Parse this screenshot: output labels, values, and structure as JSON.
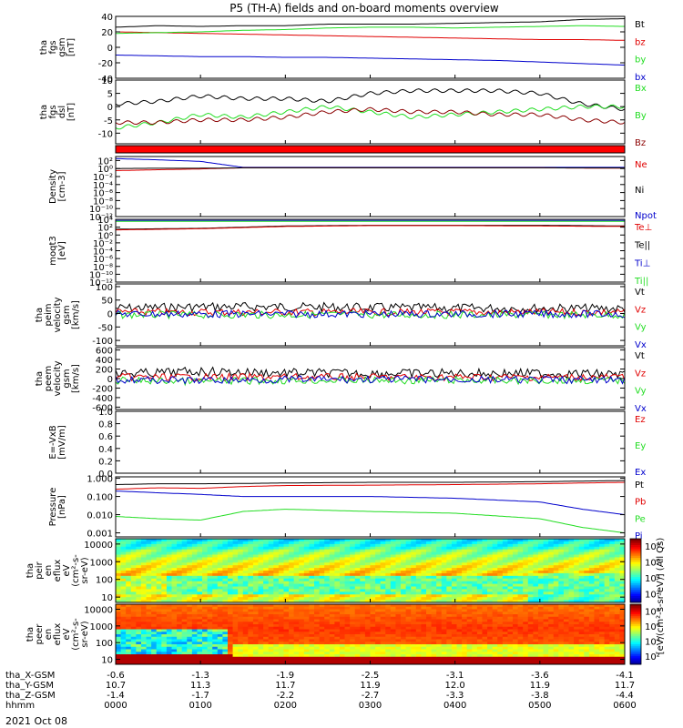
{
  "title": "P5 (TH-A) fields and on-board moments overview",
  "date_label": "2021 Oct 08",
  "colors": {
    "black": "#000000",
    "red": "#e00000",
    "green": "#22dd22",
    "blue": "#0000cc",
    "darkred": "#8b0000"
  },
  "chart_data": [
    {
      "type": "line",
      "id": "fgs-mag",
      "ylabel_lines": [
        "tha",
        "fgs",
        "gsm",
        "[nT]"
      ],
      "ylim": [
        -40,
        40
      ],
      "ticks": [
        "40",
        "20",
        "0",
        "-20",
        "-40"
      ],
      "tick_vals": [
        40,
        20,
        0,
        -20,
        -40
      ],
      "legend": [
        "Bt",
        "bz",
        "by",
        "bx"
      ],
      "series": [
        {
          "name": "Bt",
          "color": "#000000",
          "x": [
            0,
            0.5,
            1,
            1.5,
            2,
            2.5,
            3,
            3.5,
            4,
            4.5,
            5,
            5.5,
            6
          ],
          "values": [
            26,
            28,
            27,
            28,
            28,
            30,
            30,
            30,
            31,
            32,
            33,
            36,
            37
          ]
        },
        {
          "name": "bz",
          "color": "#e00000",
          "x": [
            0,
            0.5,
            1,
            1.5,
            2,
            2.5,
            3,
            3.5,
            4,
            4.5,
            5,
            5.5,
            6
          ],
          "values": [
            20,
            19,
            18,
            17,
            16,
            15,
            14,
            13,
            12,
            11,
            10,
            10,
            9
          ]
        },
        {
          "name": "by",
          "color": "#22dd22",
          "x": [
            0,
            0.5,
            1,
            1.5,
            2,
            2.5,
            3,
            3.5,
            4,
            4.5,
            5,
            5.5,
            6
          ],
          "values": [
            18,
            19,
            20,
            22,
            23,
            25,
            26,
            26,
            25,
            26,
            27,
            28,
            27
          ]
        },
        {
          "name": "bx",
          "color": "#0000cc",
          "x": [
            0,
            0.5,
            1,
            1.5,
            2,
            2.5,
            3,
            3.5,
            4,
            4.5,
            5,
            5.5,
            6
          ],
          "values": [
            -10,
            -11,
            -12,
            -12,
            -13,
            -13,
            -14,
            -15,
            -16,
            -17,
            -19,
            -21,
            -23
          ]
        }
      ]
    },
    {
      "type": "line",
      "id": "fgs-dsl",
      "ylabel_lines": [
        "tha",
        "fgs",
        "dsl",
        "[nT]"
      ],
      "ylim": [
        -14,
        10
      ],
      "ticks": [
        "10",
        "5",
        "0",
        "-5",
        "-10"
      ],
      "tick_vals": [
        10,
        5,
        0,
        -5,
        -10
      ],
      "legend": [
        "Bx",
        "By",
        "Bz"
      ],
      "series": [
        {
          "name": "Bx",
          "color": "#000000",
          "x": [
            0,
            0.5,
            1,
            1.5,
            2,
            2.5,
            3,
            3.5,
            4,
            4.5,
            5,
            5.5,
            6
          ],
          "values": [
            1,
            2,
            4,
            3,
            3,
            2,
            5,
            6,
            6,
            6,
            5,
            1,
            -1
          ]
        },
        {
          "name": "By",
          "color": "#22dd22",
          "x": [
            0,
            0.5,
            1,
            1.5,
            2,
            2.5,
            3,
            3.5,
            4,
            4.5,
            5,
            5.5,
            6
          ],
          "values": [
            -8,
            -6,
            -3,
            -4,
            -2,
            0,
            -2,
            -4,
            -3,
            -2,
            -1,
            0,
            0
          ]
        },
        {
          "name": "Bz",
          "color": "#8b0000",
          "x": [
            0,
            0.5,
            1,
            1.5,
            2,
            2.5,
            3,
            3.5,
            4,
            4.5,
            5,
            5.5,
            6
          ],
          "values": [
            -6,
            -6,
            -5,
            -5,
            -4,
            -2,
            -1,
            -2,
            -2,
            -3,
            -3,
            -5,
            -6
          ]
        }
      ]
    },
    {
      "type": "line",
      "id": "density",
      "log": true,
      "ylabel_lines": [
        "Density",
        "[cm-3]"
      ],
      "ylim": [
        1e-12,
        1000.0
      ],
      "ticks": [
        "10²",
        "10⁰",
        "10⁻²",
        "10⁻⁴",
        "10⁻⁶",
        "10⁻⁸",
        "10⁻¹⁰",
        "10⁻¹²"
      ],
      "tick_vals": [
        100,
        1,
        0.01,
        0.0001,
        1e-06,
        1e-08,
        1e-10,
        1e-12
      ],
      "legend": [
        "Ne",
        "Ni",
        "Npot"
      ],
      "series": [
        {
          "name": "Npot",
          "color": "#0000cc",
          "x": [
            0,
            0.5,
            1,
            1.5,
            2,
            3,
            4,
            5,
            6
          ],
          "values": [
            300,
            150,
            60,
            2,
            2,
            2,
            2,
            2,
            2
          ]
        },
        {
          "name": "Ne",
          "color": "#e00000",
          "x": [
            0,
            0.5,
            1,
            1.5,
            2,
            3,
            4,
            5,
            6
          ],
          "values": [
            0.3,
            0.5,
            0.8,
            1.5,
            1.5,
            1.5,
            1.5,
            1.5,
            1.2
          ]
        },
        {
          "name": "Ni",
          "color": "#000000",
          "x": [
            0,
            0.5,
            1,
            1.5,
            2,
            3,
            4,
            5,
            6
          ],
          "values": [
            1,
            1.2,
            1.2,
            1.5,
            1.5,
            1.5,
            1.5,
            1.5,
            1.4
          ]
        }
      ]
    },
    {
      "type": "line",
      "id": "temperature",
      "log": true,
      "ylabel_lines": [
        "moqt3",
        "[eV]"
      ],
      "ylim": [
        1e-12,
        10000.0
      ],
      "ticks": [
        "10⁴",
        "10²",
        "10⁰",
        "10⁻²",
        "10⁻⁴",
        "10⁻⁶",
        "10⁻⁸",
        "10⁻¹⁰",
        "10⁻¹²"
      ],
      "tick_vals": [
        10000,
        100,
        1,
        0.01,
        0.0001,
        1e-06,
        1e-08,
        1e-10,
        1e-12
      ],
      "legend": [
        "Te⊥",
        "Te||",
        "Ti⊥",
        "Ti||"
      ],
      "series": [
        {
          "name": "Ti⊥",
          "color": "#0000cc",
          "x": [
            0,
            1,
            2,
            3,
            4,
            5,
            6
          ],
          "values": [
            5000,
            5000,
            5000,
            5000,
            5000,
            5000,
            5000
          ]
        },
        {
          "name": "Ti||",
          "color": "#22dd22",
          "x": [
            0,
            1,
            2,
            3,
            4,
            5,
            6
          ],
          "values": [
            3000,
            3000,
            3000,
            3000,
            3000,
            3000,
            3000
          ]
        },
        {
          "name": "Te||",
          "color": "#000000",
          "x": [
            0,
            1,
            2,
            3,
            4,
            5,
            6
          ],
          "values": [
            30,
            50,
            200,
            300,
            300,
            300,
            200
          ]
        },
        {
          "name": "Te⊥",
          "color": "#e00000",
          "x": [
            0,
            1,
            2,
            3,
            4,
            5,
            6
          ],
          "values": [
            20,
            40,
            150,
            250,
            250,
            200,
            150
          ]
        }
      ]
    },
    {
      "type": "line",
      "id": "peim-velocity",
      "ylabel_lines": [
        "tha",
        "peim",
        "velocity",
        "gsm",
        "[km/s]"
      ],
      "ylim": [
        -120,
        110
      ],
      "ticks": [
        "100",
        "50",
        "0",
        "-50",
        "-100"
      ],
      "tick_vals": [
        100,
        50,
        0,
        -50,
        -100
      ],
      "legend": [
        "Vt",
        "Vz",
        "Vy",
        "Vx"
      ],
      "series": [
        {
          "name": "Vt",
          "color": "#000000",
          "x": [
            0,
            1,
            2,
            3,
            4,
            5,
            6
          ],
          "values": [
            20,
            25,
            25,
            22,
            20,
            20,
            18
          ]
        },
        {
          "name": "Vz",
          "color": "#e00000",
          "x": [
            0,
            1,
            2,
            3,
            4,
            5,
            6
          ],
          "values": [
            5,
            5,
            5,
            5,
            5,
            5,
            5
          ]
        },
        {
          "name": "Vy",
          "color": "#22dd22",
          "x": [
            0,
            1,
            2,
            3,
            4,
            5,
            6
          ],
          "values": [
            -5,
            -5,
            -5,
            -5,
            -5,
            -5,
            -5
          ]
        },
        {
          "name": "Vx",
          "color": "#0000cc",
          "x": [
            0,
            1,
            2,
            3,
            4,
            5,
            6
          ],
          "values": [
            -2,
            -2,
            -2,
            -2,
            -2,
            -2,
            -2
          ]
        }
      ]
    },
    {
      "type": "line",
      "id": "peem-velocity",
      "ylabel_lines": [
        "tha",
        "peem",
        "velocity",
        "gsm",
        "[km/s]"
      ],
      "ylim": [
        -650,
        650
      ],
      "ticks": [
        "600",
        "400",
        "200",
        "0",
        "-200",
        "-400",
        "-600"
      ],
      "tick_vals": [
        600,
        400,
        200,
        0,
        -200,
        -400,
        -600
      ],
      "legend": [
        "Vt",
        "Vz",
        "Vy",
        "Vx"
      ],
      "series": [
        {
          "name": "Vt",
          "color": "#000000",
          "x": [
            0,
            1,
            2,
            3,
            4,
            5,
            6
          ],
          "values": [
            100,
            150,
            120,
            110,
            110,
            110,
            90
          ]
        },
        {
          "name": "Vz",
          "color": "#e00000",
          "x": [
            0,
            1,
            2,
            3,
            4,
            5,
            6
          ],
          "values": [
            30,
            30,
            30,
            30,
            30,
            30,
            30
          ]
        },
        {
          "name": "Vy",
          "color": "#22dd22",
          "x": [
            0,
            1,
            2,
            3,
            4,
            5,
            6
          ],
          "values": [
            -40,
            -60,
            -40,
            -40,
            -40,
            -40,
            -40
          ]
        },
        {
          "name": "Vx",
          "color": "#0000cc",
          "x": [
            0,
            1,
            2,
            3,
            4,
            5,
            6
          ],
          "values": [
            -20,
            -40,
            -20,
            -20,
            -20,
            -30,
            -30
          ]
        }
      ]
    },
    {
      "type": "line",
      "id": "efield",
      "ylabel_lines": [
        "E=-VxB",
        "[mV/m]"
      ],
      "ylim": [
        0,
        1
      ],
      "ticks": [
        "1.0",
        "0.8",
        "0.6",
        "0.4",
        "0.2",
        "0.0"
      ],
      "tick_vals": [
        1,
        0.8,
        0.6,
        0.4,
        0.2,
        0
      ],
      "legend": [
        "Ez",
        "Ey",
        "Ex"
      ],
      "series": []
    },
    {
      "type": "line",
      "id": "pressure",
      "log": true,
      "ylabel_lines": [
        "Pressure",
        "[nPa]"
      ],
      "ylim": [
        0.0006,
        1.2
      ],
      "ticks": [
        "1.000",
        "0.100",
        "0.010",
        "0.001"
      ],
      "tick_vals": [
        1,
        0.1,
        0.01,
        0.001
      ],
      "legend": [
        "Pt",
        "Pb",
        "Pe",
        "Pi"
      ],
      "series": [
        {
          "name": "Pt",
          "color": "#000000",
          "x": [
            0,
            0.5,
            1,
            1.5,
            2,
            3,
            4,
            5,
            5.5,
            6
          ],
          "values": [
            0.45,
            0.5,
            0.5,
            0.52,
            0.55,
            0.6,
            0.6,
            0.65,
            0.7,
            0.75
          ]
        },
        {
          "name": "Pb",
          "color": "#e00000",
          "x": [
            0,
            0.5,
            1,
            1.5,
            2,
            3,
            4,
            5,
            5.5,
            6
          ],
          "values": [
            0.25,
            0.3,
            0.28,
            0.35,
            0.4,
            0.42,
            0.45,
            0.5,
            0.55,
            0.6
          ]
        },
        {
          "name": "Pi",
          "color": "#0000cc",
          "x": [
            0,
            0.5,
            1,
            1.5,
            2,
            3,
            4,
            5,
            5.5,
            6
          ],
          "values": [
            0.2,
            0.16,
            0.13,
            0.1,
            0.1,
            0.1,
            0.08,
            0.05,
            0.02,
            0.01
          ]
        },
        {
          "name": "Pe",
          "color": "#22dd22",
          "x": [
            0,
            0.5,
            1,
            1.5,
            2,
            3,
            4,
            5,
            5.5,
            6
          ],
          "values": [
            0.008,
            0.006,
            0.005,
            0.015,
            0.02,
            0.015,
            0.012,
            0.006,
            0.002,
            0.001
          ]
        }
      ]
    },
    {
      "type": "heatmap",
      "id": "peir",
      "ylabel_lines": [
        "tha",
        "peir",
        "en",
        "eflux",
        "eV",
        "(cm²-s-",
        "sr-eV)"
      ],
      "ylim": [
        5,
        20000
      ],
      "ticks": [
        "10000",
        "1000",
        "100",
        "10"
      ],
      "tick_vals": [
        10000,
        1000,
        100,
        10
      ],
      "colorbar_ticks": [
        "10⁸",
        "10⁶",
        "10⁴",
        "10²"
      ]
    },
    {
      "type": "heatmap",
      "id": "peer",
      "ylabel_lines": [
        "tha",
        "peer",
        "en",
        "eflux",
        "eV",
        "(cm²-s-",
        "sr-eV)"
      ],
      "ylim": [
        5,
        20000
      ],
      "ticks": [
        "10000",
        "1000",
        "100",
        "10"
      ],
      "tick_vals": [
        10000,
        1000,
        100,
        10
      ],
      "colorbar_ticks": [
        "10⁸",
        "10⁶",
        "10⁴",
        "10²"
      ]
    }
  ],
  "colorbar_label": "[eV/(cm²-s-sr-eV)] (All Qs)",
  "xaxis": {
    "rows": [
      {
        "label": "tha_X-GSM",
        "values": [
          "-0.6",
          "-1.3",
          "-1.9",
          "-2.5",
          "-3.1",
          "-3.6",
          "-4.1"
        ]
      },
      {
        "label": "tha_Y-GSM",
        "values": [
          "10.7",
          "11.3",
          "11.7",
          "11.9",
          "12.0",
          "11.9",
          "11.7"
        ]
      },
      {
        "label": "tha_Z-GSM",
        "values": [
          "-1.4",
          "-1.7",
          "-2.2",
          "-2.7",
          "-3.3",
          "-3.8",
          "-4.4"
        ]
      },
      {
        "label": "hhmm",
        "values": [
          "0000",
          "0100",
          "0200",
          "0300",
          "0400",
          "0500",
          "0600"
        ]
      }
    ]
  }
}
